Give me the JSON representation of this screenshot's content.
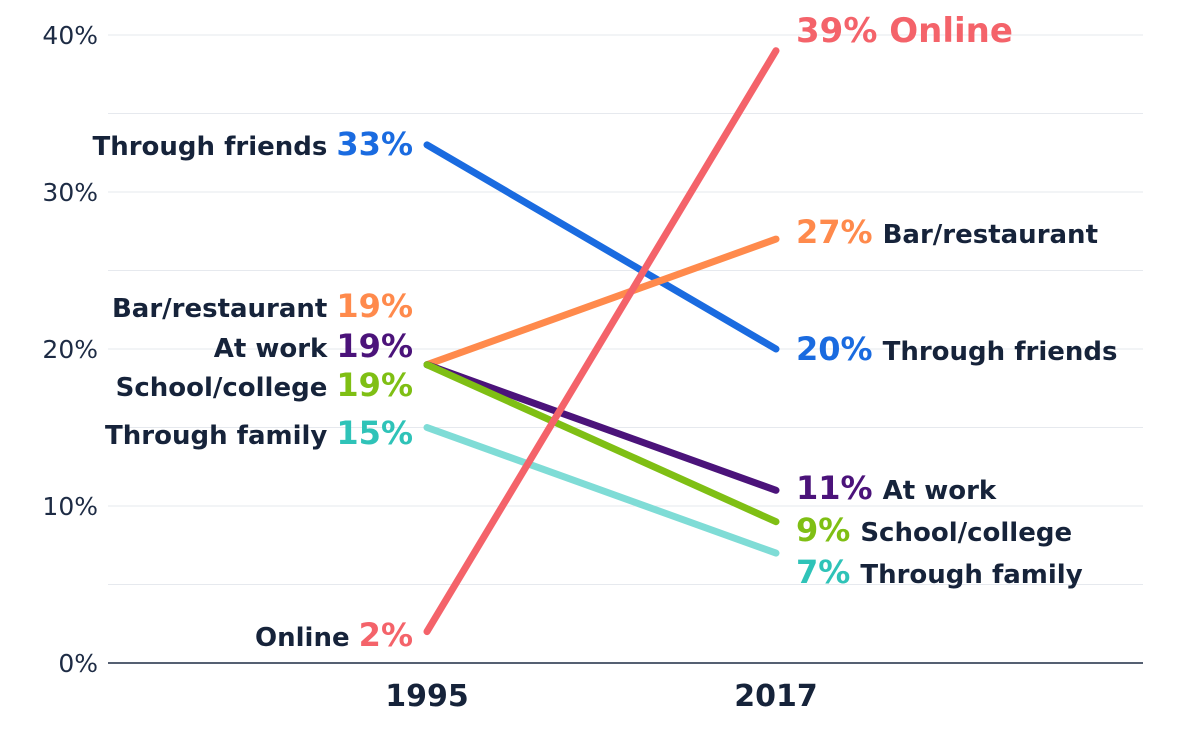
{
  "chart_data": {
    "type": "line",
    "title": "",
    "xlabel": "",
    "ylabel": "",
    "ylim": [
      0,
      40
    ],
    "yticks": [
      "0%",
      "10%",
      "20%",
      "30%",
      "40%"
    ],
    "categories": [
      "1995",
      "2017"
    ],
    "grid": true,
    "series": [
      {
        "name": "Through friends",
        "color": "#1a6be0",
        "values": [
          33,
          20
        ],
        "start_label": {
          "name": "Through friends",
          "value": "33%"
        },
        "end_label": {
          "name": "Through friends",
          "value": "20%"
        }
      },
      {
        "name": "Bar/restaurant",
        "color": "#ff8a4c",
        "values": [
          19,
          27
        ],
        "start_label": {
          "name": "Bar/restaurant",
          "value": "19%"
        },
        "end_label": {
          "name": "Bar/restaurant",
          "value": "27%"
        }
      },
      {
        "name": "At work",
        "color": "#4b137a",
        "values": [
          19,
          11
        ],
        "start_label": {
          "name": "At work",
          "value": "19%"
        },
        "end_label": {
          "name": "At work",
          "value": "11%"
        }
      },
      {
        "name": "School/college",
        "color": "#7fbf14",
        "values": [
          19,
          9
        ],
        "start_label": {
          "name": "School/college",
          "value": "19%"
        },
        "end_label": {
          "name": "School/college",
          "value": "9%"
        }
      },
      {
        "name": "Through family",
        "color": "#7fdcd6",
        "label_color": "#2fc3b8",
        "values": [
          15,
          7
        ],
        "start_label": {
          "name": "Through family",
          "value": "15%"
        },
        "end_label": {
          "name": "Through family",
          "value": "7%"
        }
      },
      {
        "name": "Online",
        "color": "#f4636a",
        "values": [
          2,
          39
        ],
        "start_label": {
          "name": "Online",
          "value": "2%"
        },
        "end_label": {
          "name": "Online",
          "value": "39% Online"
        }
      }
    ]
  }
}
